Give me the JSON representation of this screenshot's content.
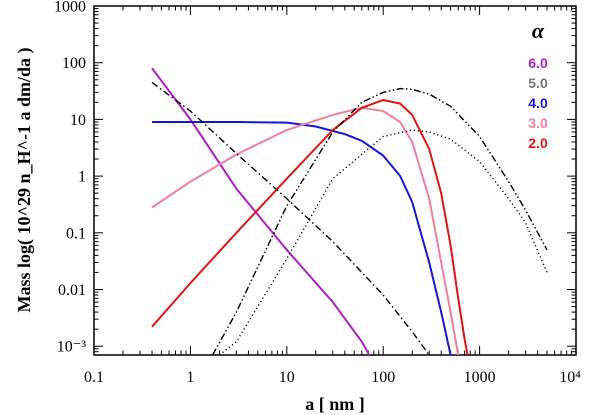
{
  "chart_data": {
    "type": "line",
    "title": "",
    "xlabel": "a [ nm ]",
    "ylabel": "Mass log( 10^29 n_H^-1 a dm/da )",
    "xscale": "log",
    "yscale": "log",
    "xlim": [
      0.1,
      10000
    ],
    "ylim": [
      0.0007,
      1000
    ],
    "x_ticks": [
      0.1,
      1,
      10,
      100,
      1000,
      10000
    ],
    "x_tick_labels": [
      "0.1",
      "1",
      "10",
      "100",
      "1000",
      "10⁴"
    ],
    "y_ticks": [
      0.001,
      0.01,
      0.1,
      1,
      10,
      100,
      1000
    ],
    "y_tick_labels": [
      "10⁻³",
      "0.01",
      "0.1",
      "1",
      "10",
      "100",
      "1000"
    ],
    "legend": {
      "title": "α",
      "location": "top-right",
      "entries": [
        {
          "label": "6.0",
          "color": "#b01cc4"
        },
        {
          "label": "5.0",
          "color": "#777777"
        },
        {
          "label": "4.0",
          "color": "#1515d8"
        },
        {
          "label": "3.0",
          "color": "#ef7f9a"
        },
        {
          "label": "2.0",
          "color": "#e01414"
        }
      ]
    },
    "series": [
      {
        "name": "α=6.0",
        "color": "#b01cc4",
        "style": "solid",
        "x": [
          0.4,
          1,
          3,
          10,
          30,
          60,
          80
        ],
        "y": [
          80,
          10,
          0.6,
          0.05,
          0.006,
          0.0012,
          0.0005
        ]
      },
      {
        "name": "α=4.0",
        "color": "#1515d8",
        "style": "solid",
        "x": [
          0.4,
          1,
          3,
          10,
          20,
          40,
          60,
          100,
          150,
          200,
          300,
          400,
          500
        ],
        "y": [
          9,
          9,
          9,
          8.8,
          7.5,
          5.5,
          4.2,
          2.3,
          1.0,
          0.35,
          0.03,
          0.004,
          0.0007
        ]
      },
      {
        "name": "α=3.0",
        "color": "#ef7f9a",
        "style": "solid",
        "x": [
          0.4,
          1,
          3,
          10,
          30,
          60,
          100,
          150,
          200,
          300,
          400,
          500,
          600
        ],
        "y": [
          0.28,
          0.8,
          2.4,
          6.5,
          12,
          16,
          14,
          9,
          4,
          0.4,
          0.03,
          0.004,
          0.0007
        ]
      },
      {
        "name": "α=2.0",
        "color": "#e01414",
        "style": "solid",
        "x": [
          0.4,
          1,
          3,
          10,
          30,
          60,
          100,
          150,
          200,
          300,
          400,
          500,
          600,
          700,
          750
        ],
        "y": [
          0.0022,
          0.013,
          0.1,
          0.9,
          6.5,
          16,
          22,
          19,
          12,
          3,
          0.5,
          0.06,
          0.007,
          0.0013,
          0.0007
        ]
      },
      {
        "name": "dash-dot",
        "color": "#000000",
        "style": "dashdot",
        "x": [
          0.4,
          1,
          3,
          10,
          30,
          100,
          200,
          300
        ],
        "y": [
          45,
          14,
          2.5,
          0.4,
          0.07,
          0.008,
          0.0018,
          0.0007
        ]
      },
      {
        "name": "dash-dot-dot",
        "color": "#000000",
        "style": "dashdotdot",
        "x": [
          1.7,
          3,
          10,
          30,
          60,
          100,
          150,
          200,
          300,
          500,
          1000,
          2000,
          3000,
          5000
        ],
        "y": [
          0.0007,
          0.004,
          0.3,
          6,
          20,
          30,
          35,
          34,
          28,
          17,
          5,
          0.8,
          0.25,
          0.05
        ]
      },
      {
        "name": "dotted",
        "color": "#000000",
        "style": "dotted",
        "x": [
          2,
          3,
          10,
          30,
          100,
          200,
          300,
          500,
          1000,
          2000,
          3000,
          5000
        ],
        "y": [
          0.0007,
          0.0012,
          0.035,
          0.9,
          5,
          6.5,
          6,
          4.5,
          1.8,
          0.4,
          0.15,
          0.02
        ]
      }
    ]
  }
}
